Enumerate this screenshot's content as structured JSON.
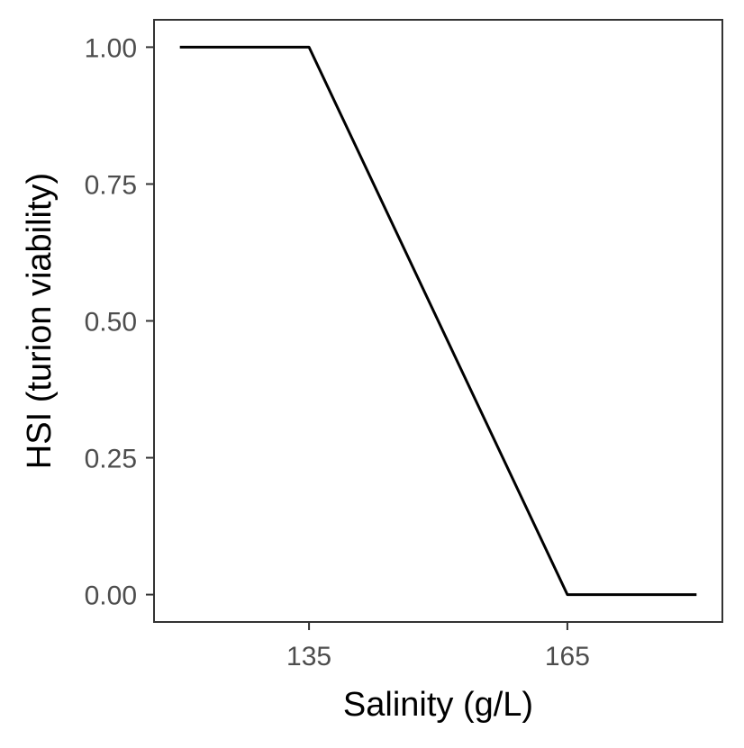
{
  "chart_data": {
    "type": "line",
    "title": "",
    "xlabel": "Salinity (g/L)",
    "ylabel": "HSI (turion viability)",
    "xlim": [
      117,
      183
    ],
    "ylim": [
      -0.05,
      1.05
    ],
    "x_ticks": [
      135,
      165
    ],
    "x_tick_labels": [
      "135",
      "165"
    ],
    "y_ticks": [
      0,
      0.25,
      0.5,
      0.75,
      1
    ],
    "y_tick_labels": [
      "0.00",
      "0.25",
      "0.50",
      "0.75",
      "1.00"
    ],
    "grid": false,
    "legend": "none",
    "series": [
      {
        "x": [
          120,
          135,
          165,
          180
        ],
        "y": [
          1,
          1,
          0,
          0
        ],
        "color": "#000000"
      }
    ]
  }
}
